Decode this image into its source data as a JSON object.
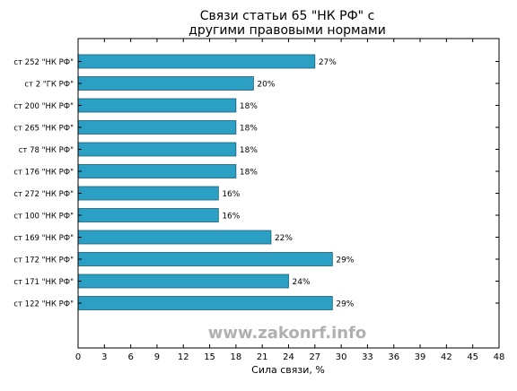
{
  "chart_data": {
    "type": "bar",
    "orientation": "horizontal",
    "title_lines": [
      "Связи статьи 65 \"НК РФ\" с",
      "другими правовыми нормами"
    ],
    "xlabel": "Сила связи, %",
    "ylabel": "",
    "xlim": [
      0,
      48
    ],
    "xticks": [
      0,
      3,
      6,
      9,
      12,
      15,
      18,
      21,
      24,
      27,
      30,
      33,
      36,
      39,
      42,
      45,
      48
    ],
    "categories": [
      "ст 252 \"НК РФ\"",
      "ст 2 \"ГК РФ\"",
      "ст 200 \"НК РФ\"",
      "ст 265 \"НК РФ\"",
      "ст 78 \"НК РФ\"",
      "ст 176 \"НК РФ\"",
      "ст 272 \"НК РФ\"",
      "ст 100 \"НК РФ\"",
      "ст 169 \"НК РФ\"",
      "ст 172 \"НК РФ\"",
      "ст 171 \"НК РФ\"",
      "ст 122 \"НК РФ\""
    ],
    "values": [
      27,
      20,
      18,
      18,
      18,
      18,
      16,
      16,
      22,
      29,
      24,
      29
    ],
    "value_labels": [
      "27%",
      "20%",
      "18%",
      "18%",
      "18%",
      "18%",
      "16%",
      "16%",
      "22%",
      "29%",
      "24%",
      "29%"
    ],
    "grid": false,
    "bar_color": "#2b9fc4",
    "bar_edge_color": "#1b5f78",
    "watermark": "www.zakonrf.info",
    "watermark_color": "#b0b0b0"
  }
}
